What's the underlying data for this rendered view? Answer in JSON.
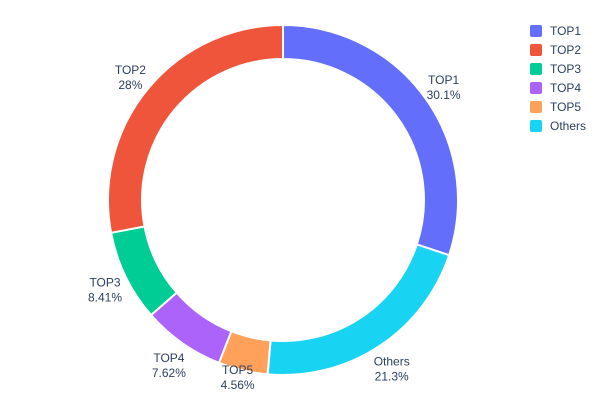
{
  "chart_data": {
    "type": "pie",
    "subtype": "donut",
    "hole": 0.8,
    "title": "",
    "background": "#ffffff",
    "text_color": "#2a3f5f",
    "separator_color": "#ffffff",
    "slices_draw_order_clockwise_from_top": [
      {
        "label": "TOP1",
        "value": 30.1,
        "pct_text": "30.1%",
        "color": "#636EFA"
      },
      {
        "label": "Others",
        "value": 21.3,
        "pct_text": "21.3%",
        "color": "#19D3F3"
      },
      {
        "label": "TOP5",
        "value": 4.56,
        "pct_text": "4.56%",
        "color": "#FFA15A"
      },
      {
        "label": "TOP4",
        "value": 7.62,
        "pct_text": "7.62%",
        "color": "#AB63FA"
      },
      {
        "label": "TOP3",
        "value": 8.41,
        "pct_text": "8.41%",
        "color": "#00CC96"
      },
      {
        "label": "TOP2",
        "value": 28.0,
        "pct_text": "28%",
        "color": "#EF553B"
      }
    ],
    "legend": {
      "position": "top-right",
      "items": [
        {
          "label": "TOP1",
          "color": "#636EFA"
        },
        {
          "label": "TOP2",
          "color": "#EF553B"
        },
        {
          "label": "TOP3",
          "color": "#00CC96"
        },
        {
          "label": "TOP4",
          "color": "#AB63FA"
        },
        {
          "label": "TOP5",
          "color": "#FFA15A"
        },
        {
          "label": "Others",
          "color": "#19D3F3"
        }
      ]
    }
  }
}
